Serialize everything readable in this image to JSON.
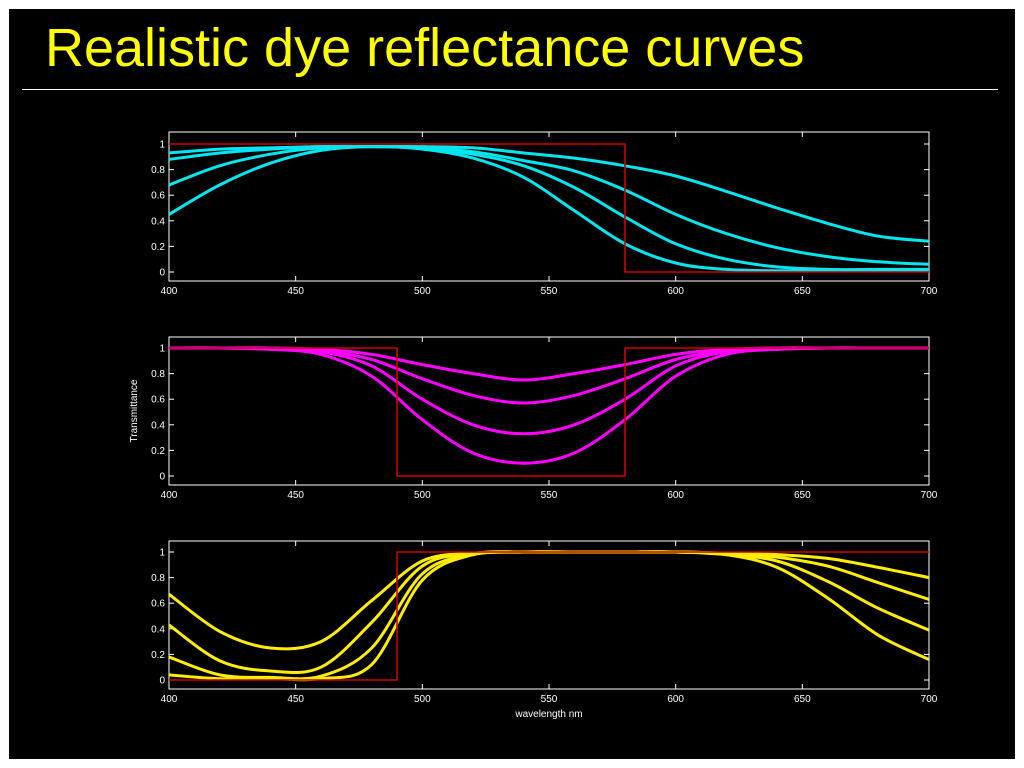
{
  "slide": {
    "title": "Realistic dye reflectance curves",
    "background": "#000000",
    "title_color": "#ffff00"
  },
  "chart_data": [
    {
      "type": "line",
      "panel": "top",
      "xlabel": "",
      "ylabel": "",
      "xlim": [
        400,
        700
      ],
      "ylim": [
        0,
        1
      ],
      "xticks": [
        400,
        450,
        500,
        550,
        600,
        650,
        700
      ],
      "yticks": [
        0,
        0.2,
        0.4,
        0.6,
        0.8,
        1
      ],
      "grid": false,
      "x": [
        400,
        420,
        440,
        460,
        480,
        500,
        520,
        540,
        560,
        580,
        600,
        620,
        640,
        660,
        680,
        700
      ],
      "series": [
        {
          "color": "#00e5ee",
          "values": [
            0.93,
            0.96,
            0.97,
            0.98,
            0.98,
            0.98,
            0.97,
            0.93,
            0.89,
            0.83,
            0.75,
            0.63,
            0.5,
            0.38,
            0.28,
            0.24
          ]
        },
        {
          "color": "#00e5ee",
          "values": [
            0.88,
            0.93,
            0.96,
            0.98,
            0.98,
            0.97,
            0.94,
            0.87,
            0.79,
            0.64,
            0.45,
            0.3,
            0.19,
            0.12,
            0.08,
            0.06
          ]
        },
        {
          "color": "#00e5ee",
          "values": [
            0.68,
            0.83,
            0.92,
            0.97,
            0.98,
            0.97,
            0.92,
            0.83,
            0.66,
            0.43,
            0.22,
            0.1,
            0.04,
            0.02,
            0.02,
            0.02
          ]
        },
        {
          "color": "#00e5ee",
          "values": [
            0.45,
            0.68,
            0.85,
            0.95,
            0.98,
            0.96,
            0.89,
            0.74,
            0.48,
            0.22,
            0.07,
            0.02,
            0.01,
            0.01,
            0.01,
            0.01
          ]
        },
        {
          "color": "#cc0000",
          "step": true,
          "x": [
            400,
            580,
            580,
            700
          ],
          "values": [
            1,
            1,
            0,
            0
          ]
        }
      ]
    },
    {
      "type": "line",
      "panel": "middle",
      "xlabel": "",
      "ylabel": "Transmittance",
      "xlim": [
        400,
        700
      ],
      "ylim": [
        0,
        1
      ],
      "xticks": [
        400,
        450,
        500,
        550,
        600,
        650,
        700
      ],
      "yticks": [
        0,
        0.2,
        0.4,
        0.6,
        0.8,
        1
      ],
      "grid": false,
      "x": [
        400,
        420,
        440,
        460,
        480,
        500,
        520,
        540,
        560,
        580,
        600,
        620,
        640,
        660,
        680,
        700
      ],
      "series": [
        {
          "color": "#ff00ff",
          "values": [
            1.0,
            1.0,
            1.0,
            0.99,
            0.95,
            0.87,
            0.8,
            0.75,
            0.8,
            0.87,
            0.95,
            0.99,
            1.0,
            1.0,
            1.0,
            1.0
          ]
        },
        {
          "color": "#ff00ff",
          "values": [
            1.0,
            1.0,
            1.0,
            0.98,
            0.91,
            0.76,
            0.63,
            0.57,
            0.63,
            0.76,
            0.91,
            0.98,
            1.0,
            1.0,
            1.0,
            1.0
          ]
        },
        {
          "color": "#ff00ff",
          "values": [
            1.0,
            1.0,
            0.99,
            0.97,
            0.86,
            0.6,
            0.4,
            0.33,
            0.4,
            0.6,
            0.86,
            0.97,
            0.99,
            1.0,
            1.0,
            1.0
          ]
        },
        {
          "color": "#ff00ff",
          "values": [
            1.0,
            1.0,
            0.99,
            0.95,
            0.78,
            0.44,
            0.18,
            0.1,
            0.18,
            0.44,
            0.78,
            0.95,
            0.99,
            1.0,
            1.0,
            1.0
          ]
        },
        {
          "color": "#cc0000",
          "step": true,
          "x": [
            400,
            490,
            490,
            580,
            580,
            700
          ],
          "values": [
            1,
            1,
            0,
            0,
            1,
            1
          ]
        }
      ]
    },
    {
      "type": "line",
      "panel": "bottom",
      "xlabel": "wavelength nm",
      "ylabel": "",
      "xlim": [
        400,
        700
      ],
      "ylim": [
        0,
        1
      ],
      "xticks": [
        400,
        450,
        500,
        550,
        600,
        650,
        700
      ],
      "yticks": [
        0,
        0.2,
        0.4,
        0.6,
        0.8,
        1
      ],
      "grid": false,
      "x": [
        400,
        420,
        440,
        460,
        480,
        500,
        520,
        540,
        560,
        580,
        600,
        620,
        640,
        660,
        680,
        700
      ],
      "series": [
        {
          "color": "#ffee00",
          "values": [
            0.67,
            0.38,
            0.25,
            0.3,
            0.62,
            0.93,
            0.99,
            1.0,
            1.0,
            1.0,
            1.0,
            0.99,
            0.98,
            0.95,
            0.88,
            0.8
          ]
        },
        {
          "color": "#ffee00",
          "values": [
            0.43,
            0.15,
            0.07,
            0.1,
            0.45,
            0.89,
            0.99,
            1.0,
            1.0,
            1.0,
            1.0,
            0.99,
            0.96,
            0.89,
            0.76,
            0.63
          ]
        },
        {
          "color": "#ffee00",
          "values": [
            0.18,
            0.04,
            0.02,
            0.03,
            0.25,
            0.83,
            0.98,
            1.0,
            1.0,
            1.0,
            1.0,
            0.98,
            0.93,
            0.77,
            0.56,
            0.39
          ]
        },
        {
          "color": "#ffee00",
          "values": [
            0.04,
            0.01,
            0.01,
            0.01,
            0.12,
            0.78,
            0.98,
            1.0,
            1.0,
            1.0,
            1.0,
            0.98,
            0.88,
            0.64,
            0.35,
            0.16
          ]
        },
        {
          "color": "#cc0000",
          "step": true,
          "x": [
            400,
            490,
            490,
            700
          ],
          "values": [
            0,
            0,
            1,
            1
          ]
        }
      ]
    }
  ]
}
